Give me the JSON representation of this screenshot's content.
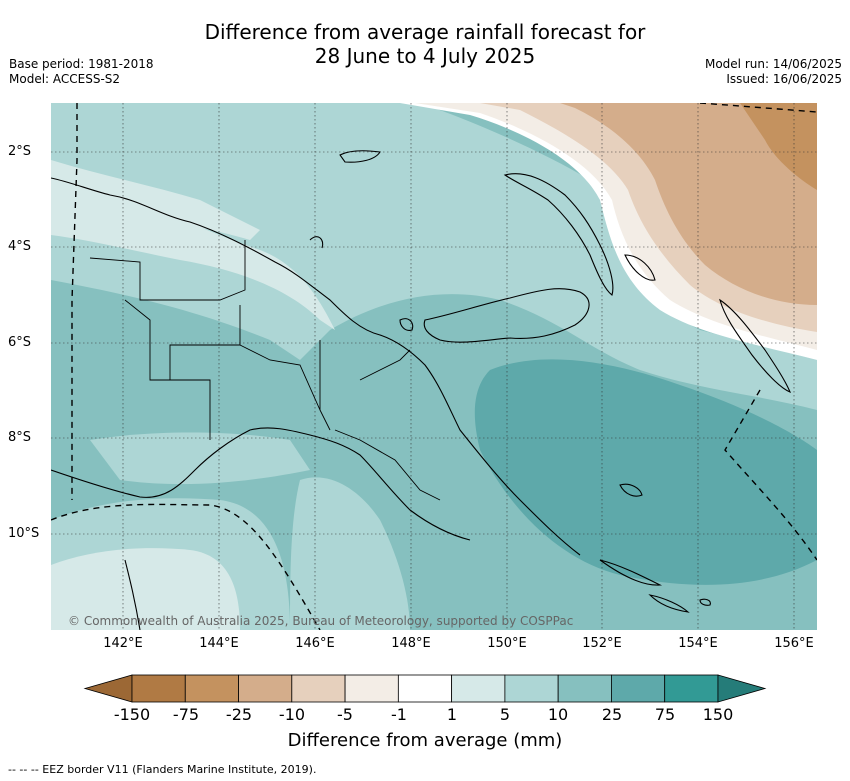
{
  "header": {
    "title_line1": "Difference from average rainfall forecast for",
    "title_line2": "28 June to 4 July 2025",
    "base_period": "Base period: 1981-2018",
    "model": "Model: ACCESS-S2",
    "model_run": "Model run: 14/06/2025",
    "issued": "Issued: 16/06/2025"
  },
  "map": {
    "x_ticks": [
      "142°E",
      "144°E",
      "146°E",
      "148°E",
      "150°E",
      "152°E",
      "154°E",
      "156°E"
    ],
    "y_ticks": [
      "2°S",
      "4°S",
      "6°S",
      "8°S",
      "10°S"
    ],
    "copyright": "© Commonwealth of Australia 2025, Bureau of Meteorology, supported by COSPPac",
    "eez_legend": "--  --  -- EEZ border V11 (Flanders Marine Institute, 2019)."
  },
  "colorbar": {
    "title": "Difference from average (mm)",
    "tick_labels": [
      "-150",
      "-75",
      "-25",
      "-10",
      "-5",
      "-1",
      "1",
      "5",
      "10",
      "25",
      "75",
      "150"
    ],
    "colors": [
      "#9c6835",
      "#b07a44",
      "#c4925f",
      "#d4ad8b",
      "#e6d0bd",
      "#f3ede6",
      "#ffffff",
      "#d6e9e8",
      "#add6d5",
      "#86c0bf",
      "#5ea9aa",
      "#329a95",
      "#257c79"
    ]
  }
}
